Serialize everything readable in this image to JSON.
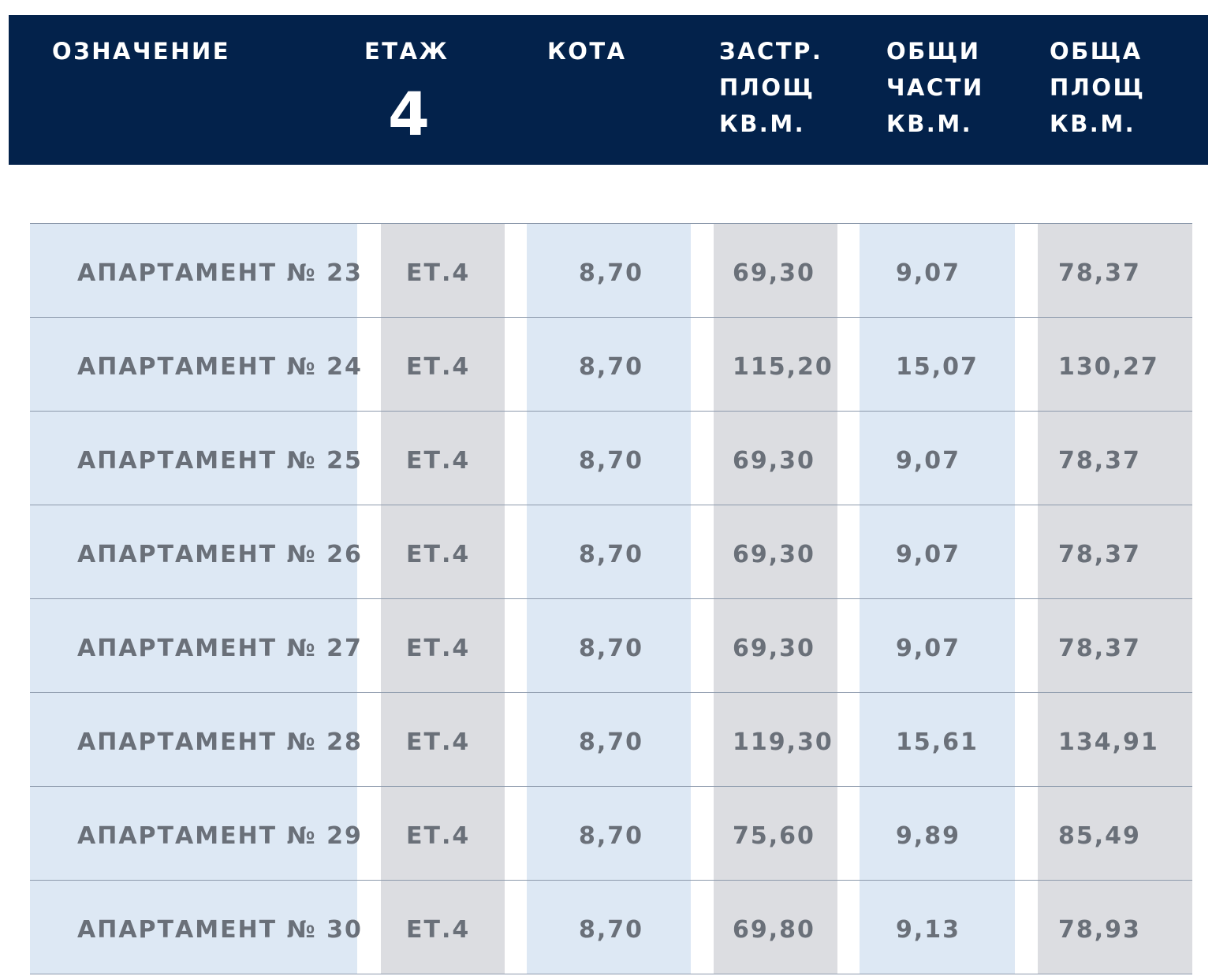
{
  "header": {
    "columns": [
      {
        "lines": [
          "ОЗНАЧЕНИЕ"
        ]
      },
      {
        "lines": [
          "ЕТАЖ"
        ],
        "floor": "4"
      },
      {
        "lines": [
          "КОТА"
        ]
      },
      {
        "lines": [
          "ЗАСТР.",
          "ПЛОЩ",
          "КВ.М."
        ]
      },
      {
        "lines": [
          "ОБЩИ",
          "ЧАСТИ",
          "КВ.М."
        ]
      },
      {
        "lines": [
          "ОБЩА",
          "ПЛОЩ",
          "КВ.М."
        ]
      }
    ]
  },
  "table": {
    "rows": [
      [
        "АПАРТАМЕНТ № 23",
        "ЕТ.4",
        "8,70",
        "69,30",
        "9,07",
        "78,37"
      ],
      [
        "АПАРТАМЕНТ № 24",
        "ЕТ.4",
        "8,70",
        "115,20",
        "15,07",
        "130,27"
      ],
      [
        "АПАРТАМЕНТ № 25",
        "ЕТ.4",
        "8,70",
        "69,30",
        "9,07",
        "78,37"
      ],
      [
        "АПАРТАМЕНТ № 26",
        "ЕТ.4",
        "8,70",
        "69,30",
        "9,07",
        "78,37"
      ],
      [
        "АПАРТАМЕНТ № 27",
        "ЕТ.4",
        "8,70",
        "69,30",
        "9,07",
        "78,37"
      ],
      [
        "АПАРТАМЕНТ № 28",
        "ЕТ.4",
        "8,70",
        "119,30",
        "15,61",
        "134,91"
      ],
      [
        "АПАРТАМЕНТ № 29",
        "ЕТ.4",
        "8,70",
        "75,60",
        "9,89",
        "85,49"
      ],
      [
        "АПАРТАМЕНТ № 30",
        "ЕТ.4",
        "8,70",
        "69,80",
        "9,13",
        "78,93"
      ]
    ]
  }
}
